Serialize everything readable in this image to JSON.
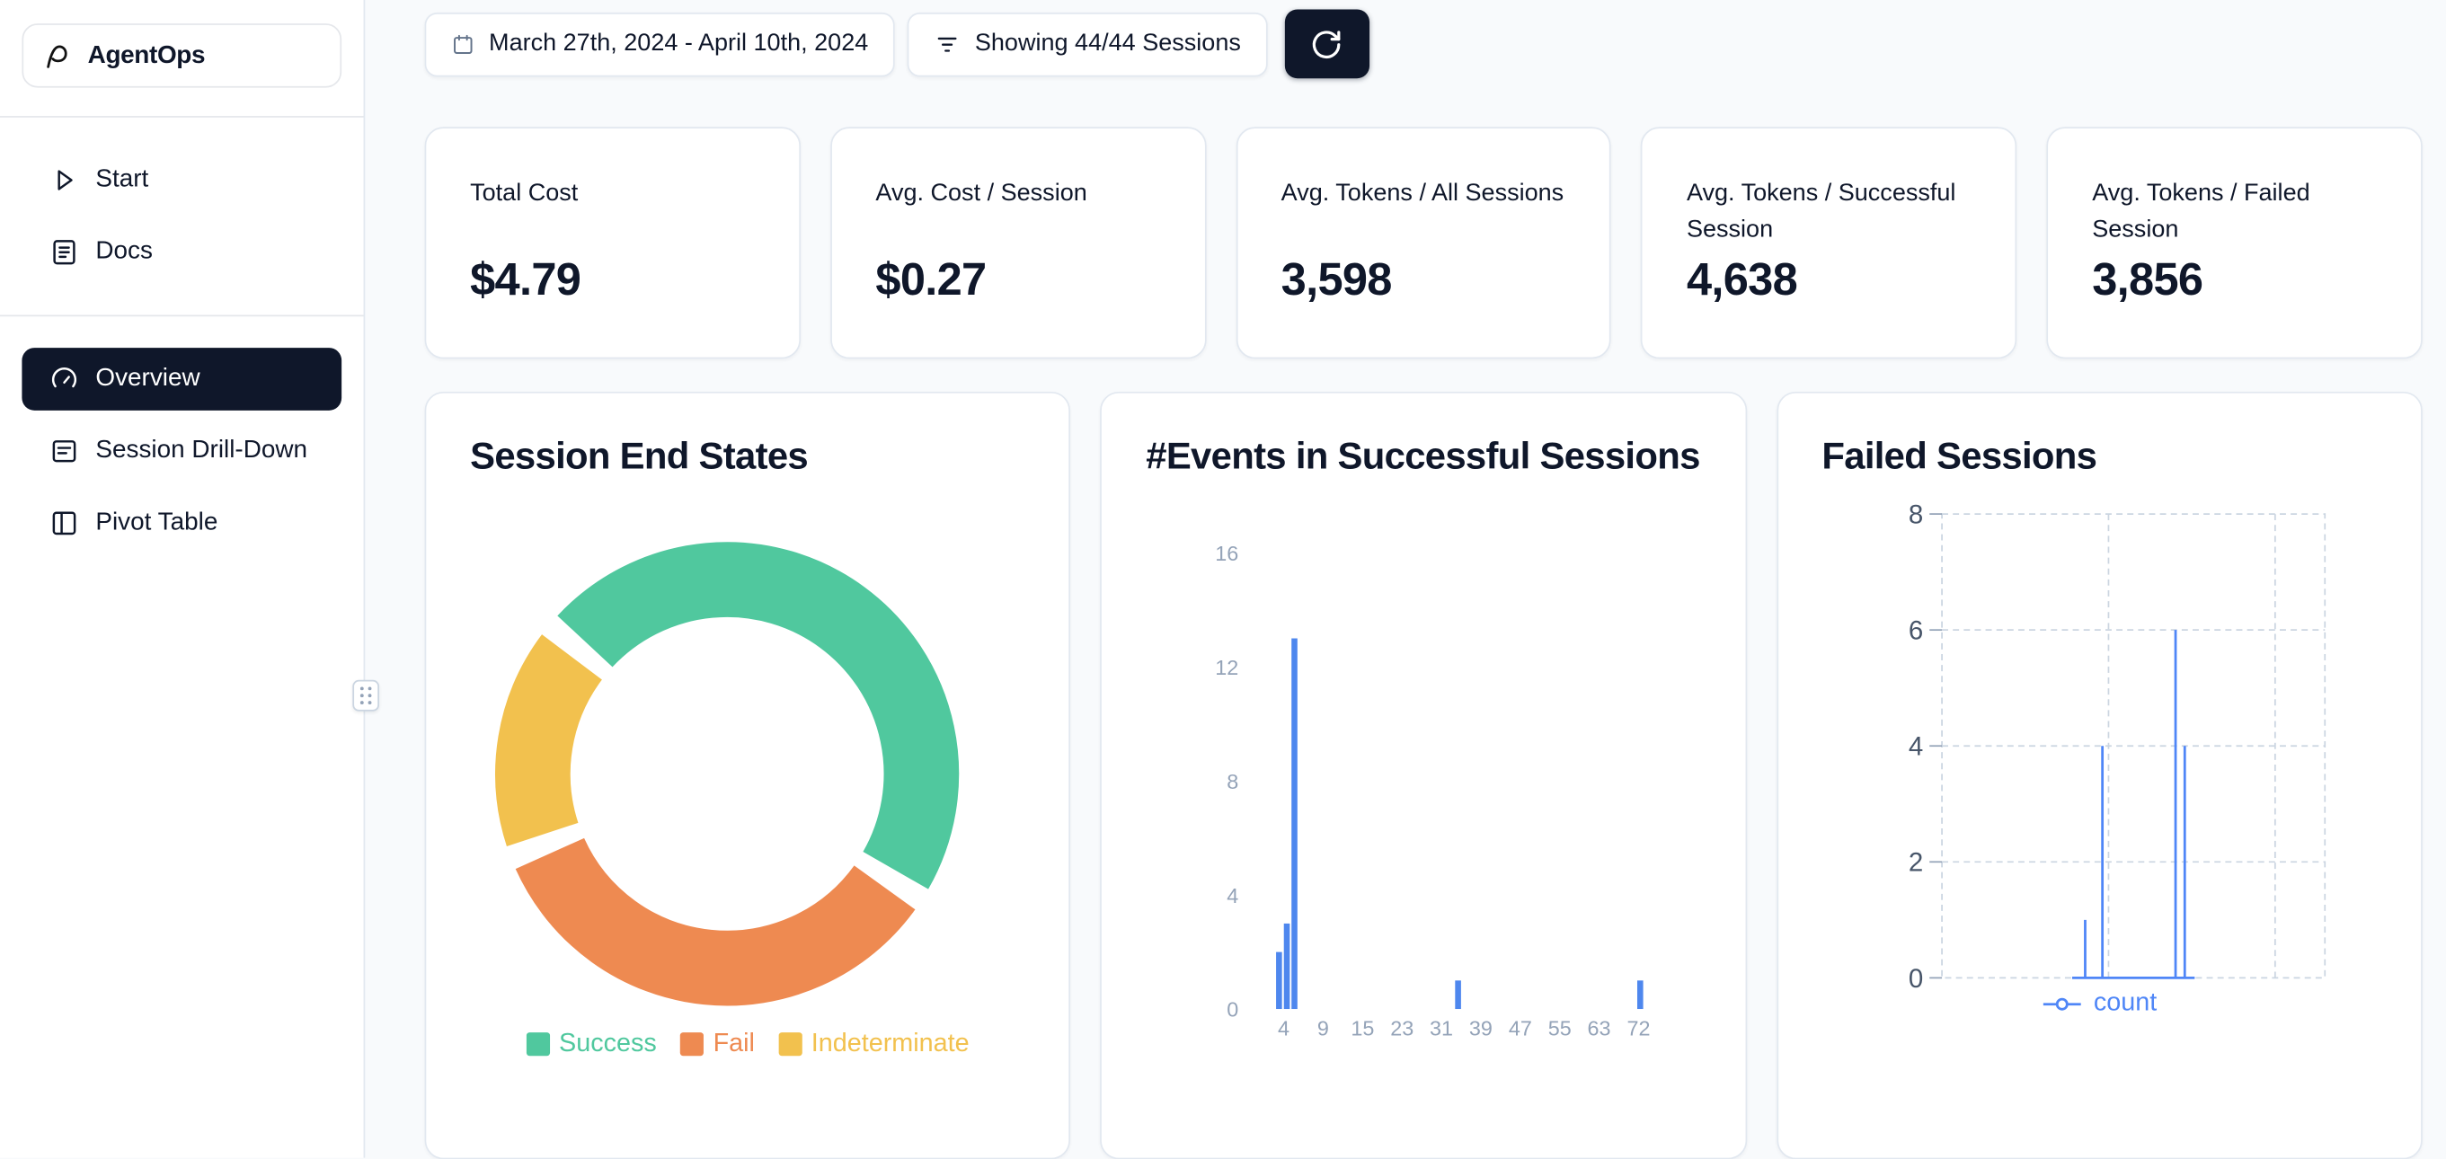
{
  "app": {
    "name": "AgentOps"
  },
  "sidebar": {
    "logo_label": "AgentOps",
    "nav_top": [
      {
        "label": "Start",
        "icon": "play-icon"
      },
      {
        "label": "Docs",
        "icon": "docs-icon"
      }
    ],
    "nav_main": [
      {
        "label": "Overview",
        "icon": "gauge-icon",
        "active": true
      },
      {
        "label": "Session Drill-Down",
        "icon": "sessions-icon",
        "active": false
      },
      {
        "label": "Pivot Table",
        "icon": "pivot-icon",
        "active": false
      }
    ]
  },
  "toolbar": {
    "date_range": "March 27th, 2024 - April 10th, 2024",
    "filter": "Showing 44/44 Sessions",
    "refresh_icon": "refresh-icon"
  },
  "stats": [
    {
      "label": "Total Cost",
      "value": "$4.79"
    },
    {
      "label": "Avg. Cost / Session",
      "value": "$0.27"
    },
    {
      "label": "Avg. Tokens / All Sessions",
      "value": "3,598"
    },
    {
      "label": "Avg. Tokens / Successful Session",
      "value": "4,638"
    },
    {
      "label": "Avg. Tokens / Failed Session",
      "value": "3,856"
    }
  ],
  "colors": {
    "background": "#f8fafc",
    "card_border": "#e2e8f0",
    "dark_navy": "#0f172a",
    "success_green": "#50C89E",
    "fail_orange": "#EE8A51",
    "indeterminate_yellow": "#F2C14E",
    "chart_blue": "#4E87EE"
  },
  "chart_data": [
    {
      "type": "pie",
      "donut": true,
      "title": "Session End States",
      "labels": [
        "Success",
        "Fail",
        "Indeterminate"
      ],
      "values": [
        48,
        35,
        17
      ],
      "value_unit": "percent-estimated",
      "colors": [
        "#50C89E",
        "#EE8A51",
        "#F2C14E"
      ],
      "legend_position": "bottom"
    },
    {
      "type": "bar",
      "title": "#Events in Successful Sessions",
      "color": "#4E87EE",
      "x_ticks": [
        "4",
        "9",
        "15",
        "23",
        "31",
        "39",
        "47",
        "55",
        "63",
        "72"
      ],
      "yticks": [
        0,
        4,
        8,
        12,
        16
      ],
      "ylim": [
        0,
        16
      ],
      "bars": [
        {
          "events": 3,
          "count": 2,
          "pos": 0.054
        },
        {
          "events": 4,
          "count": 3,
          "pos": 0.073
        },
        {
          "events": 5,
          "count": 13,
          "pos": 0.092
        },
        {
          "events": 39,
          "count": 1,
          "pos": 0.496
        },
        {
          "events": 72,
          "count": 1,
          "pos": 0.946
        }
      ]
    },
    {
      "type": "line",
      "title": "Failed Sessions",
      "series": [
        {
          "name": "count",
          "color": "#4F86F7"
        }
      ],
      "yticks": [
        0,
        2,
        4,
        6,
        8
      ],
      "ylim": [
        0,
        8
      ],
      "grid": "dashed",
      "baseline": [
        0.34,
        0.66
      ],
      "spikes": [
        {
          "pos": 0.374,
          "value": 1
        },
        {
          "pos": 0.419,
          "value": 4
        },
        {
          "pos": 0.61,
          "value": 6
        },
        {
          "pos": 0.634,
          "value": 4
        }
      ],
      "legend_position": "bottom"
    }
  ]
}
